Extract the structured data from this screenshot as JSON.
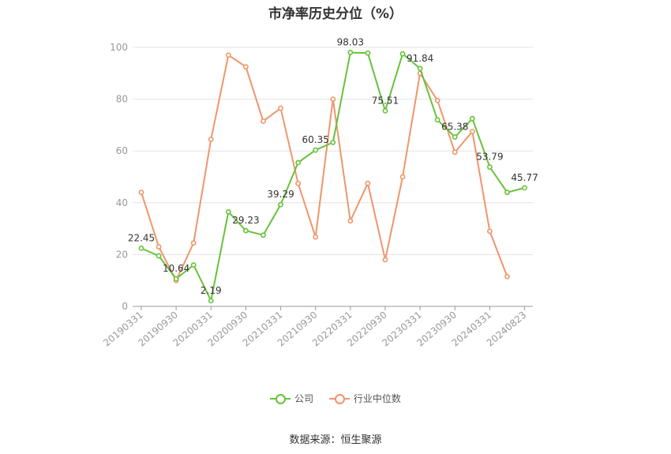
{
  "chart_data": {
    "type": "line",
    "title": "市净率历史分位（%）",
    "ylim": [
      0,
      100
    ],
    "yticks": [
      0,
      20,
      40,
      60,
      80,
      100
    ],
    "x_tick_labels": [
      "20190331",
      "20190930",
      "20200331",
      "20200930",
      "20210331",
      "20210930",
      "20220331",
      "20220930",
      "20230331",
      "20230930",
      "20240331",
      "20240823"
    ],
    "x": [
      "20190331",
      "20190630",
      "20190930",
      "20191231",
      "20200331",
      "20200630",
      "20200930",
      "20201231",
      "20210331",
      "20210630",
      "20210930",
      "20211231",
      "20220331",
      "20220630",
      "20220930",
      "20221231",
      "20230331",
      "20230630",
      "20230930",
      "20231231",
      "20240331",
      "20240630",
      "20240823"
    ],
    "series": [
      {
        "name": "公司",
        "color": "#67c23a",
        "values": [
          22.45,
          19.5,
          10.64,
          16.0,
          2.19,
          36.5,
          29.23,
          27.5,
          39.29,
          55.5,
          60.35,
          63.3,
          98.03,
          97.8,
          75.51,
          97.5,
          91.84,
          72.0,
          65.38,
          72.5,
          53.79,
          44.0,
          45.77
        ],
        "labels": {
          "0": "22.45",
          "2": "10.64",
          "4": "2.19",
          "6": "29.23",
          "8": "39.29",
          "10": "60.35",
          "12": "98.03",
          "14": "75.51",
          "16": "91.84",
          "18": "65.38",
          "20": "53.79",
          "22": "45.77"
        }
      },
      {
        "name": "行业中位数",
        "color": "#f0956a",
        "values": [
          44.0,
          23.0,
          10.0,
          24.5,
          64.5,
          97.0,
          92.5,
          71.5,
          76.5,
          47.5,
          26.8,
          80.0,
          33.0,
          47.5,
          18.0,
          50.0,
          90.0,
          79.5,
          59.5,
          67.5,
          29.0,
          11.5,
          null
        ],
        "labels": {}
      }
    ],
    "legend_position": "bottom",
    "grid": true
  },
  "source": "数据来源：恒生聚源"
}
